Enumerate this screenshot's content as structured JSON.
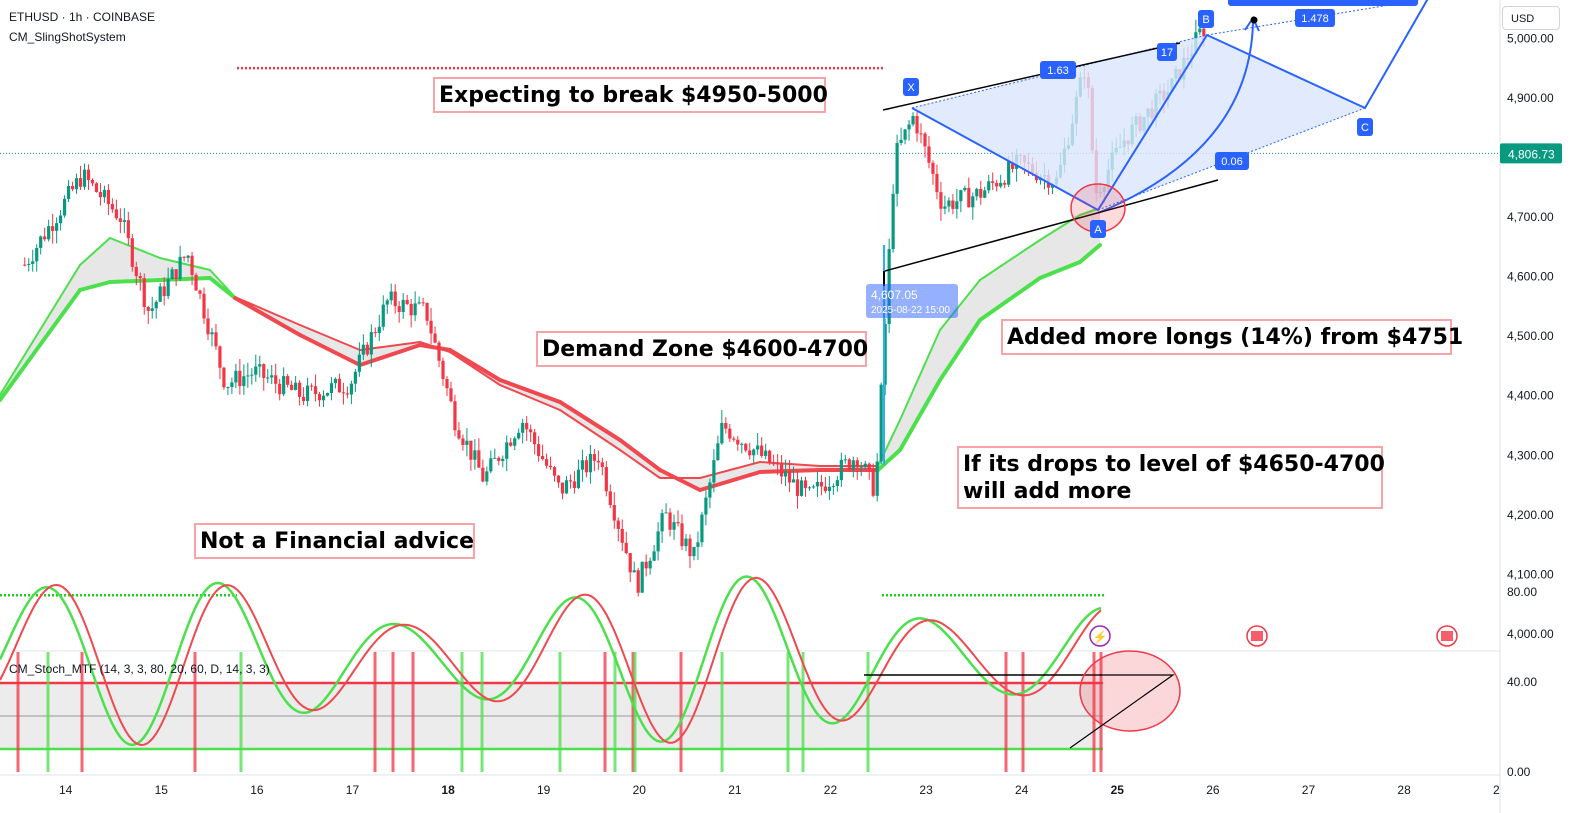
{
  "header": {
    "symbol_line": "ETHUSD · 1h · COINBASE",
    "indicator_line": "CM_SlingShotSystem",
    "currency": "USD"
  },
  "last_price": {
    "value": "4,806.73",
    "color": "#089981"
  },
  "colors": {
    "up": "#089981",
    "down": "#f23645",
    "ema_green": "#4ce04c",
    "ema_red": "#f0484f",
    "pattern_blue": "#2962ff",
    "pattern_fill": "#dbe6fe"
  },
  "notes": {
    "breakout": "Expecting to break $4950-5000",
    "demand_zone": "Demand Zone $4600-4700",
    "disclaimer": "Not a Financial advice",
    "longs": "Added more longs (14%) from $4751",
    "add_more": "If its drops to level of $4650-4700\nwill add more"
  },
  "pattern": {
    "points": [
      "X",
      "A",
      "B",
      "C"
    ],
    "ratios": [
      "1.63",
      "0.06",
      "1.478",
      "17"
    ],
    "callout_price": "4,607.05",
    "callout_date": "2025-08-22 15:00"
  },
  "indicator": {
    "title": "CM_Stoch_MTF (14, 3, 3, 80, 20, 60, D, 14, 3, 3)",
    "yticks": [
      "80.00",
      "40.00",
      "0.00"
    ]
  },
  "chart_data": {
    "type": "candlestick",
    "symbol": "ETHUSD",
    "interval": "1h",
    "exchange": "COINBASE",
    "y_ticks": [
      4000,
      4100,
      4200,
      4300,
      4400,
      4500,
      4600,
      4700,
      4800,
      4900,
      5000
    ],
    "y_tick_labels": [
      "4,000.00",
      "4,100.00",
      "4,200.00",
      "4,300.00",
      "4,400.00",
      "4,500.00",
      "4,600.00",
      "4,700.00",
      "4,800.00",
      "4,900.00",
      "5,000.00"
    ],
    "x_tick_labels": [
      "14",
      "15",
      "16",
      "17",
      "18",
      "19",
      "20",
      "21",
      "22",
      "23",
      "24",
      "25",
      "26",
      "27",
      "28",
      "2"
    ],
    "approx_close_path": [
      {
        "day": 13.6,
        "price": 4620
      },
      {
        "day": 14.2,
        "price": 4770
      },
      {
        "day": 14.6,
        "price": 4700
      },
      {
        "day": 14.9,
        "price": 4540
      },
      {
        "day": 15.3,
        "price": 4640
      },
      {
        "day": 15.7,
        "price": 4420
      },
      {
        "day": 16.0,
        "price": 4440
      },
      {
        "day": 16.5,
        "price": 4400
      },
      {
        "day": 17.0,
        "price": 4420
      },
      {
        "day": 17.4,
        "price": 4560
      },
      {
        "day": 17.8,
        "price": 4540
      },
      {
        "day": 18.1,
        "price": 4360
      },
      {
        "day": 18.4,
        "price": 4260
      },
      {
        "day": 18.8,
        "price": 4360
      },
      {
        "day": 19.2,
        "price": 4240
      },
      {
        "day": 19.6,
        "price": 4300
      },
      {
        "day": 20.0,
        "price": 4080
      },
      {
        "day": 20.3,
        "price": 4200
      },
      {
        "day": 20.6,
        "price": 4130
      },
      {
        "day": 20.9,
        "price": 4350
      },
      {
        "day": 21.3,
        "price": 4300
      },
      {
        "day": 21.8,
        "price": 4230
      },
      {
        "day": 22.3,
        "price": 4300
      },
      {
        "day": 22.5,
        "price": 4240
      },
      {
        "day": 22.7,
        "price": 4800
      },
      {
        "day": 22.9,
        "price": 4870
      },
      {
        "day": 23.2,
        "price": 4720
      },
      {
        "day": 23.6,
        "price": 4740
      },
      {
        "day": 24.0,
        "price": 4790
      },
      {
        "day": 24.4,
        "price": 4760
      },
      {
        "day": 24.7,
        "price": 4960
      },
      {
        "day": 24.8,
        "price": 4740
      },
      {
        "day": 25.1,
        "price": 4830
      },
      {
        "day": 25.6,
        "price": 4920
      },
      {
        "day": 25.9,
        "price": 5010
      }
    ],
    "events": {
      "resistance_line": 4950,
      "support_line": 4065,
      "last_price": 4806.73,
      "swing_low_callout": {
        "price": 4607.05,
        "date": "2025-08-22 15:00"
      }
    },
    "stochastic": {
      "overbought": 80,
      "oversold": 20,
      "mid": 60,
      "y_ticks": [
        80,
        40,
        0
      ]
    }
  }
}
